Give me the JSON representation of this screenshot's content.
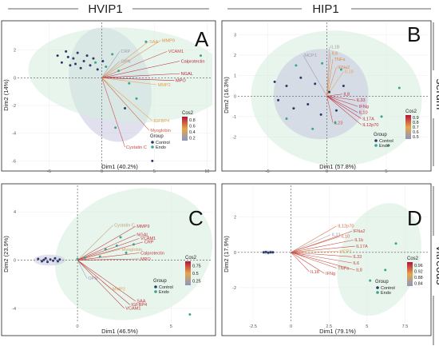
{
  "headers": {
    "col1": "HVIP1",
    "col2": "HIP1",
    "row1": "serum",
    "row2": "vitreous"
  },
  "palette": {
    "control": "#2b3a67",
    "endo": "#3aa58a",
    "control_ellipse": "#c9c6e0",
    "endo_ellipse": "#d3ecdf",
    "cos2_low": "#8a97c4",
    "cos2_mid": "#e6a54a",
    "cos2_high": "#b5123a"
  },
  "chart_data": [
    {
      "type": "scatter",
      "panel": "A",
      "xlabel": "Dim1 (40.2%)",
      "ylabel": "Dim2 (14%)",
      "xlim": [
        -8,
        10.5
      ],
      "ylim": [
        -6.5,
        4
      ],
      "xticks": [
        -5,
        0,
        5,
        10
      ],
      "yticks": [
        -6,
        -4,
        -2,
        0,
        2
      ],
      "legend_group_title": "Group",
      "legend_groups": [
        "Control",
        "Endo"
      ],
      "legend_cos2_title": "Cos2",
      "cos2_ticks": [
        0.8,
        0.6,
        0.4,
        0.2
      ],
      "cos2_range": [
        0.1,
        0.9
      ],
      "ellipses": [
        {
          "group": "Control",
          "cx": 0.8,
          "cy": -0.5,
          "rx": 3.8,
          "ry": 4.2,
          "angle": -15
        },
        {
          "group": "Endo",
          "cx": 2.5,
          "cy": 0.2,
          "rx": 9.5,
          "ry": 3.4,
          "angle": 4
        }
      ],
      "points": [
        {
          "group": "Control",
          "x": -4.2,
          "y": 1.6
        },
        {
          "group": "Control",
          "x": -3.8,
          "y": 1.1
        },
        {
          "group": "Control",
          "x": -3.4,
          "y": 1.9
        },
        {
          "group": "Control",
          "x": -3.0,
          "y": 0.9
        },
        {
          "group": "Control",
          "x": -2.7,
          "y": 1.4
        },
        {
          "group": "Control",
          "x": -2.3,
          "y": 1.8
        },
        {
          "group": "Control",
          "x": -2.0,
          "y": 0.7
        },
        {
          "group": "Control",
          "x": -1.7,
          "y": 1.2
        },
        {
          "group": "Control",
          "x": -1.4,
          "y": 1.6
        },
        {
          "group": "Control",
          "x": -1.1,
          "y": 0.9
        },
        {
          "group": "Control",
          "x": -0.8,
          "y": 1.4
        },
        {
          "group": "Control",
          "x": -0.4,
          "y": 0.6
        },
        {
          "group": "Control",
          "x": 0.1,
          "y": 1.2
        },
        {
          "group": "Control",
          "x": -3.2,
          "y": 1.5
        },
        {
          "group": "Control",
          "x": -2.5,
          "y": 1.0
        },
        {
          "group": "Control",
          "x": 2.2,
          "y": -2.2
        },
        {
          "group": "Control",
          "x": 4.8,
          "y": -6.0
        },
        {
          "group": "Endo",
          "x": -0.6,
          "y": 1.1
        },
        {
          "group": "Endo",
          "x": 0.4,
          "y": 0.8
        },
        {
          "group": "Endo",
          "x": 1.0,
          "y": 1.7
        },
        {
          "group": "Endo",
          "x": 1.6,
          "y": 0.5
        },
        {
          "group": "Endo",
          "x": 1.3,
          "y": -3.6
        },
        {
          "group": "Endo",
          "x": 2.6,
          "y": -0.4
        },
        {
          "group": "Endo",
          "x": 3.3,
          "y": -1.5
        },
        {
          "group": "Endo",
          "x": 4.2,
          "y": 2.6
        },
        {
          "group": "Endo",
          "x": 9.4,
          "y": 1.6
        }
      ],
      "variables": [
        {
          "name": "SAA",
          "x": 4.4,
          "y": 2.6,
          "cos2": 0.45
        },
        {
          "name": "MMP9",
          "x": 5.6,
          "y": 2.7,
          "cos2": 0.55
        },
        {
          "name": "VCAM1",
          "x": 6.2,
          "y": 1.9,
          "cos2": 0.75
        },
        {
          "name": "Calprotectin",
          "x": 7.4,
          "y": 1.2,
          "cos2": 0.85
        },
        {
          "name": "NGAL",
          "x": 7.4,
          "y": 0.3,
          "cos2": 0.85
        },
        {
          "name": "MPO",
          "x": 6.9,
          "y": -0.2,
          "cos2": 0.85
        },
        {
          "name": "MMP2",
          "x": 5.2,
          "y": -0.5,
          "cos2": 0.5
        },
        {
          "name": "CRP",
          "x": 1.7,
          "y": 1.9,
          "cos2": 0.2
        },
        {
          "name": "OPN",
          "x": 1.7,
          "y": 1.2,
          "cos2": 0.2
        },
        {
          "name": "IGFBP4",
          "x": 4.8,
          "y": -3.1,
          "cos2": 0.5
        },
        {
          "name": "Myoglobin",
          "x": 4.5,
          "y": -3.8,
          "cos2": 0.7
        },
        {
          "name": "Cystatin C",
          "x": 2.2,
          "y": -5.0,
          "cos2": 0.75
        }
      ]
    },
    {
      "type": "scatter",
      "panel": "B",
      "xlabel": "Dim1 (57.8%)",
      "ylabel": "Dim2 (16.3%)",
      "xlim": [
        -7.5,
        8.5
      ],
      "ylim": [
        -3.5,
        3.6
      ],
      "xticks": [
        -5,
        0,
        5
      ],
      "yticks": [
        -2,
        -1,
        0,
        1,
        2,
        3
      ],
      "legend_group_title": "Group",
      "legend_groups": [
        "Control",
        "Endo"
      ],
      "legend_cos2_title": "Cos2",
      "cos2_ticks": [
        0.9,
        0.8,
        0.7,
        0.6,
        0.5
      ],
      "cos2_range": [
        0.45,
        0.95
      ],
      "ellipses": [
        {
          "group": "Endo",
          "cx": 0.8,
          "cy": -0.1,
          "rx": 7.2,
          "ry": 3.3,
          "angle": 4
        },
        {
          "group": "Control",
          "cx": -0.5,
          "cy": 0.1,
          "rx": 4.0,
          "ry": 2.2,
          "angle": -10
        }
      ],
      "points": [
        {
          "group": "Control",
          "x": -4.1,
          "y": -0.2
        },
        {
          "group": "Control",
          "x": -3.4,
          "y": 0.5
        },
        {
          "group": "Control",
          "x": -2.8,
          "y": -0.6
        },
        {
          "group": "Control",
          "x": -2.2,
          "y": 0.9
        },
        {
          "group": "Control",
          "x": -1.6,
          "y": -0.4
        },
        {
          "group": "Control",
          "x": -1.0,
          "y": 0.6
        },
        {
          "group": "Control",
          "x": -0.5,
          "y": -0.9
        },
        {
          "group": "Control",
          "x": 0.2,
          "y": 0.2
        },
        {
          "group": "Control",
          "x": 0.8,
          "y": -0.7
        },
        {
          "group": "Control",
          "x": 1.4,
          "y": 0.5
        },
        {
          "group": "Control",
          "x": -4.4,
          "y": 0.7
        },
        {
          "group": "Endo",
          "x": -3.4,
          "y": -1.1
        },
        {
          "group": "Endo",
          "x": -2.6,
          "y": 1.5
        },
        {
          "group": "Endo",
          "x": -1.2,
          "y": -1.6
        },
        {
          "group": "Endo",
          "x": -0.4,
          "y": 1.6
        },
        {
          "group": "Endo",
          "x": 0.7,
          "y": -1.3
        },
        {
          "group": "Endo",
          "x": 1.2,
          "y": 1.3
        },
        {
          "group": "Endo",
          "x": 4.6,
          "y": -1.0
        },
        {
          "group": "Endo",
          "x": 5.2,
          "y": -2.4
        },
        {
          "group": "Endo",
          "x": 6.1,
          "y": 0.4
        }
      ],
      "variables": [
        {
          "name": "IL1B",
          "x": 0.2,
          "y": 2.4,
          "cos2": 0.55
        },
        {
          "name": "MCP1",
          "x": -2.0,
          "y": 2.0,
          "cos2": 0.5
        },
        {
          "name": "IL6",
          "x": 0.3,
          "y": 2.1,
          "cos2": 0.75
        },
        {
          "name": "TNFa",
          "x": 0.5,
          "y": 1.8,
          "cos2": 0.75
        },
        {
          "name": "IFNa2",
          "x": 0.8,
          "y": 1.4,
          "cos2": 0.75
        },
        {
          "name": "IL18",
          "x": 1.4,
          "y": 1.2,
          "cos2": 0.7
        },
        {
          "name": "IL8",
          "x": 1.3,
          "y": 0.1,
          "cos2": 0.9
        },
        {
          "name": "IL33",
          "x": 2.4,
          "y": -0.2,
          "cos2": 0.9
        },
        {
          "name": "IFNg",
          "x": 2.6,
          "y": -0.5,
          "cos2": 0.9
        },
        {
          "name": "IL10",
          "x": 2.6,
          "y": -0.8,
          "cos2": 0.9
        },
        {
          "name": "IL17A",
          "x": 2.9,
          "y": -1.1,
          "cos2": 0.9
        },
        {
          "name": "IL12p70",
          "x": 2.9,
          "y": -1.4,
          "cos2": 0.9
        },
        {
          "name": "IL23",
          "x": 0.5,
          "y": -1.3,
          "cos2": 0.85
        }
      ]
    },
    {
      "type": "scatter",
      "panel": "C",
      "xlabel": "Dim1 (46.5%)",
      "ylabel": "Dim2 (23.9%)",
      "xlim": [
        -3.2,
        7.2
      ],
      "ylim": [
        -5.2,
        6.2
      ],
      "xticks": [
        0,
        5
      ],
      "yticks": [
        -4,
        0,
        4
      ],
      "legend_group_title": "Group",
      "legend_groups": [
        "Control",
        "Endo"
      ],
      "legend_cos2_title": "Cos2",
      "cos2_ticks": [
        0.75,
        0.5,
        0.25
      ],
      "cos2_range": [
        0.1,
        0.9
      ],
      "ellipses": [
        {
          "group": "Endo",
          "cx": 3.0,
          "cy": 0.5,
          "rx": 4.3,
          "ry": 5.3,
          "angle": -20
        },
        {
          "group": "Control",
          "cx": -1.5,
          "cy": 0.0,
          "rx": 0.85,
          "ry": 0.45,
          "angle": 0
        }
      ],
      "points": [
        {
          "group": "Control",
          "x": -2.1,
          "y": 0.1
        },
        {
          "group": "Control",
          "x": -1.9,
          "y": -0.1
        },
        {
          "group": "Control",
          "x": -1.7,
          "y": 0.15
        },
        {
          "group": "Control",
          "x": -1.6,
          "y": -0.15
        },
        {
          "group": "Control",
          "x": -1.45,
          "y": 0.05
        },
        {
          "group": "Control",
          "x": -1.3,
          "y": -0.05
        },
        {
          "group": "Control",
          "x": -1.2,
          "y": 0.15
        },
        {
          "group": "Control",
          "x": -1.05,
          "y": -0.1
        },
        {
          "group": "Control",
          "x": -0.95,
          "y": 0.05
        },
        {
          "group": "Control",
          "x": -1.8,
          "y": 0.02
        },
        {
          "group": "Endo",
          "x": 0.0,
          "y": 0.1
        },
        {
          "group": "Endo",
          "x": 0.4,
          "y": 0.2
        },
        {
          "group": "Endo",
          "x": 1.2,
          "y": 0.3
        },
        {
          "group": "Endo",
          "x": 1.5,
          "y": 0.9
        },
        {
          "group": "Endo",
          "x": 2.1,
          "y": 1.2
        },
        {
          "group": "Endo",
          "x": 2.3,
          "y": 1.9
        },
        {
          "group": "Endo",
          "x": 2.6,
          "y": 0.6
        },
        {
          "group": "Endo",
          "x": 3.0,
          "y": 1.3
        },
        {
          "group": "Endo",
          "x": 6.0,
          "y": -4.5
        }
      ],
      "variables": [
        {
          "name": "Cystatin C",
          "x": 1.9,
          "y": 2.9,
          "cos2": 0.35
        },
        {
          "name": "MMP9",
          "x": 3.1,
          "y": 2.8,
          "cos2": 0.8
        },
        {
          "name": "NGAL",
          "x": 3.1,
          "y": 2.1,
          "cos2": 0.8
        },
        {
          "name": "VCAM1",
          "x": 3.3,
          "y": 1.8,
          "cos2": 0.8
        },
        {
          "name": "CRP",
          "x": 3.5,
          "y": 1.5,
          "cos2": 0.8
        },
        {
          "name": "Myoglobin",
          "x": 2.3,
          "y": 0.9,
          "cos2": 0.4
        },
        {
          "name": "Calprotectin",
          "x": 3.3,
          "y": 0.6,
          "cos2": 0.8
        },
        {
          "name": "MPO",
          "x": 3.3,
          "y": 0.1,
          "cos2": 0.8
        },
        {
          "name": "OPN",
          "x": 0.5,
          "y": -1.5,
          "cos2": 0.15
        },
        {
          "name": "MMP2",
          "x": 1.8,
          "y": -2.4,
          "cos2": 0.45
        },
        {
          "name": "SAA",
          "x": 3.1,
          "y": -3.4,
          "cos2": 0.8
        },
        {
          "name": "IGFBP4",
          "x": 2.8,
          "y": -3.7,
          "cos2": 0.8
        },
        {
          "name": "VCAM1",
          "x": 2.5,
          "y": -4.0,
          "cos2": 0.8
        }
      ]
    },
    {
      "type": "scatter",
      "panel": "D",
      "xlabel": "Dim1 (79.1%)",
      "ylabel": "Dim2 (17.9%)",
      "xlim": [
        -3.5,
        9.0
      ],
      "ylim": [
        -4.0,
        3.8
      ],
      "xticks": [
        -2.5,
        0,
        2.5,
        5,
        7.5
      ],
      "yticks": [
        -2,
        0,
        2
      ],
      "legend_group_title": "Group",
      "legend_groups": [
        "Control",
        "Endo"
      ],
      "legend_cos2_title": "Cos2",
      "cos2_ticks": [
        0.96,
        0.92,
        0.88,
        0.84
      ],
      "cos2_range": [
        0.82,
        0.98
      ],
      "ellipses": [
        {
          "group": "Endo",
          "cx": 5.8,
          "cy": -0.4,
          "rx": 2.6,
          "ry": 3.3,
          "angle": 20
        },
        {
          "group": "Control",
          "cx": -1.5,
          "cy": 0.0,
          "rx": 0.45,
          "ry": 0.12,
          "angle": 0
        }
      ],
      "points": [
        {
          "group": "Control",
          "x": -1.8,
          "y": 0.0
        },
        {
          "group": "Control",
          "x": -1.65,
          "y": 0.02
        },
        {
          "group": "Control",
          "x": -1.5,
          "y": -0.02
        },
        {
          "group": "Control",
          "x": -1.35,
          "y": 0.01
        },
        {
          "group": "Control",
          "x": -1.2,
          "y": 0.0
        },
        {
          "group": "Endo",
          "x": 6.9,
          "y": 0.5
        },
        {
          "group": "Endo",
          "x": 5.2,
          "y": -1.6
        },
        {
          "group": "Endo",
          "x": 6.2,
          "y": -1.0
        }
      ],
      "variables": [
        {
          "name": "IL12p70",
          "x": 3.0,
          "y": 1.5,
          "cos2": 0.93
        },
        {
          "name": "IFNa2",
          "x": 4.0,
          "y": 1.2,
          "cos2": 0.95
        },
        {
          "name": "IL23",
          "x": 2.6,
          "y": 1.0,
          "cos2": 0.84
        },
        {
          "name": "IL10",
          "x": 3.2,
          "y": 0.9,
          "cos2": 0.93
        },
        {
          "name": "IL1b",
          "x": 4.1,
          "y": 0.7,
          "cos2": 0.95
        },
        {
          "name": "IL17A",
          "x": 4.2,
          "y": 0.35,
          "cos2": 0.95
        },
        {
          "name": "MCP1",
          "x": 3.1,
          "y": 0.05,
          "cos2": 0.9
        },
        {
          "name": "IL33",
          "x": 4.0,
          "y": -0.25,
          "cos2": 0.95
        },
        {
          "name": "IL6",
          "x": 4.0,
          "y": -0.6,
          "cos2": 0.95
        },
        {
          "name": "TNFa",
          "x": 3.0,
          "y": -0.9,
          "cos2": 0.95
        },
        {
          "name": "IL8",
          "x": 4.2,
          "y": -1.0,
          "cos2": 0.95
        },
        {
          "name": "IFNg",
          "x": 2.2,
          "y": -1.2,
          "cos2": 0.95
        },
        {
          "name": "IL18",
          "x": 1.2,
          "y": -1.1,
          "cos2": 0.95
        }
      ]
    }
  ]
}
